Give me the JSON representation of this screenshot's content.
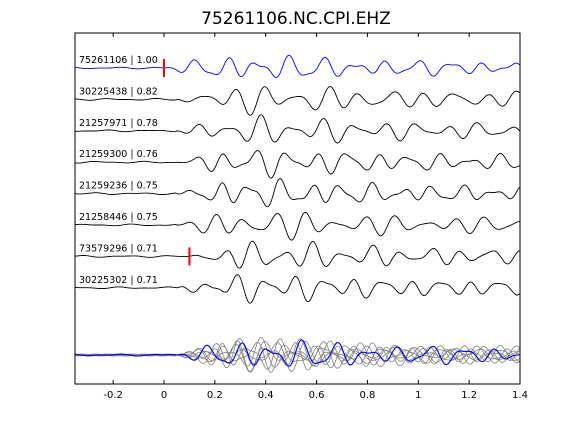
{
  "chart_data": {
    "type": "line",
    "title": "75261106.NC.CPI.EHZ",
    "xlim": [
      -0.35,
      1.4
    ],
    "x_ticks": [
      "-0.2",
      "0",
      "0.2",
      "0.4",
      "0.6",
      "0.8",
      "1",
      "1.2",
      "1.4"
    ],
    "x_tick_values": [
      -0.2,
      0,
      0.2,
      0.4,
      0.6,
      0.8,
      1.0,
      1.2,
      1.4
    ],
    "grid": false,
    "colors": {
      "master": "#0000ff",
      "trace": "#000000",
      "stack": "#808080",
      "pick": "#ff0000"
    },
    "traces": [
      {
        "label": "75261106 | 1.00",
        "master": true,
        "pick": 0.0
      },
      {
        "label": "30225438 | 0.82",
        "master": false,
        "pick": null
      },
      {
        "label": "21257971 | 0.78",
        "master": false,
        "pick": null
      },
      {
        "label": "21259300 | 0.76",
        "master": false,
        "pick": null
      },
      {
        "label": "21259236 | 0.75",
        "master": false,
        "pick": null
      },
      {
        "label": "21258446 | 0.75",
        "master": false,
        "pick": null
      },
      {
        "label": "73579296 | 0.71",
        "master": false,
        "pick": 0.1
      },
      {
        "label": "30225302 | 0.71",
        "master": false,
        "pick": null
      }
    ],
    "stack_panel": {
      "overlay_count": 8
    }
  }
}
